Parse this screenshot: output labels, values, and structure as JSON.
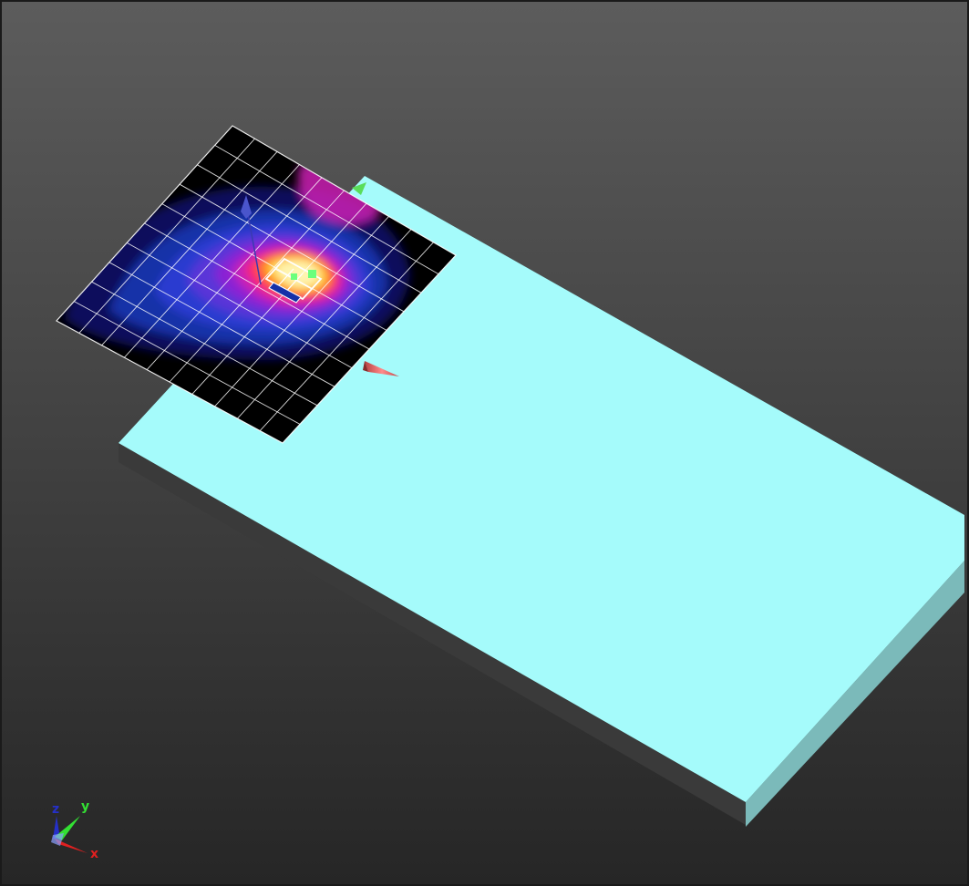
{
  "viewport": {
    "background_top": "#5c5c5c",
    "background_bottom": "#262626",
    "border_color": "#1a1a1a"
  },
  "board": {
    "top_color": "#a5fbfb",
    "side_color": "#7bbaba",
    "edge_shadow_color": "#3a3a3a"
  },
  "heatmap": {
    "colors": [
      "#000000",
      "#0a0f5c",
      "#1530a8",
      "#2a3ad0",
      "#5a34d8",
      "#8a22d4",
      "#cc22b4",
      "#ff2a62",
      "#ff7a1a",
      "#ffd23a",
      "#fff4b0"
    ],
    "grid_color": "#ffffff",
    "grid_divisions": 10
  },
  "axis_triad": {
    "x_label": "x",
    "y_label": "y",
    "z_label": "z",
    "x_color": "#e02020",
    "y_color": "#33e033",
    "z_color": "#2530c8"
  },
  "icons": [
    "source-arrow-icon",
    "direction-cone-icon",
    "axis-triad-icon"
  ]
}
